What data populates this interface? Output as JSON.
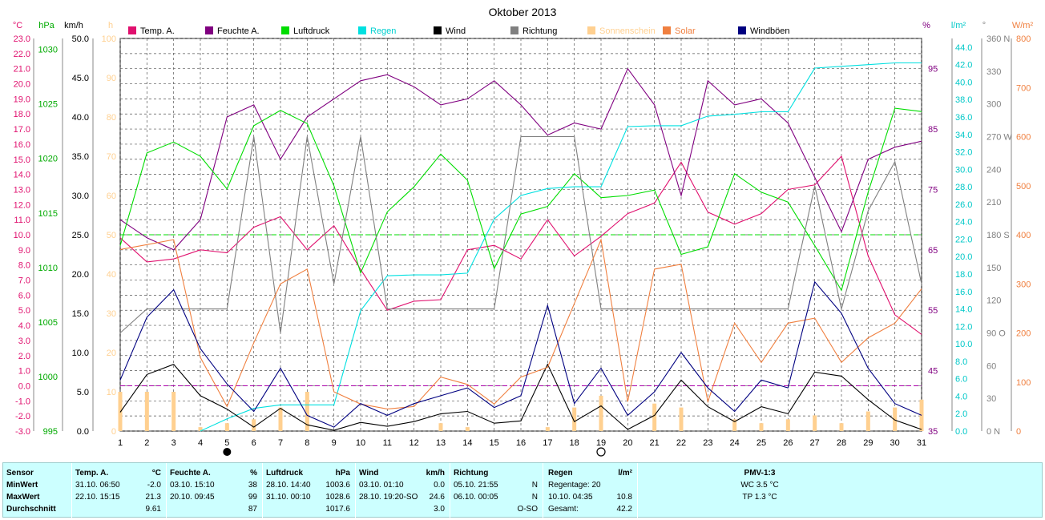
{
  "chart_data": {
    "type": "line",
    "title": "Oktober 2013",
    "x": [
      1,
      2,
      3,
      4,
      5,
      6,
      7,
      8,
      9,
      10,
      11,
      12,
      13,
      14,
      15,
      16,
      17,
      18,
      19,
      20,
      21,
      22,
      23,
      24,
      25,
      26,
      27,
      28,
      29,
      30,
      31
    ],
    "x_ticks": [
      1,
      2,
      3,
      4,
      5,
      6,
      7,
      8,
      9,
      10,
      11,
      12,
      13,
      14,
      15,
      16,
      17,
      18,
      19,
      20,
      21,
      22,
      23,
      24,
      25,
      26,
      27,
      28,
      29,
      30,
      31
    ],
    "legend": [
      {
        "name": "Temp. A.",
        "color": "#e0106e"
      },
      {
        "name": "Feuchte A.",
        "color": "#800080"
      },
      {
        "name": "Luftdruck",
        "color": "#00dd00"
      },
      {
        "name": "Regen",
        "color": "#00e0e0"
      },
      {
        "name": "Wind",
        "color": "#000000"
      },
      {
        "name": "Richtung",
        "color": "#808080"
      },
      {
        "name": "Sonnenschein",
        "color": "#ffd090"
      },
      {
        "name": "Solar",
        "color": "#f08040"
      },
      {
        "name": "Windböen",
        "color": "#000080"
      }
    ],
    "axes": {
      "temp": {
        "label": "°C",
        "color": "#e0106e",
        "ticks": [
          "23.0",
          "22.0",
          "21.0",
          "20.0",
          "19.0",
          "18.0",
          "17.0",
          "16.0",
          "15.0",
          "14.0",
          "13.0",
          "12.0",
          "11.0",
          "10.0",
          "9.0",
          "8.0",
          "7.0",
          "6.0",
          "5.0",
          "4.0",
          "3.0",
          "2.0",
          "1.0",
          "0.0",
          "-1.0",
          "-2.0",
          "-3.0"
        ],
        "range": [
          -3,
          23
        ]
      },
      "pressure": {
        "label": "hPa",
        "color": "#00aa00",
        "ticks": [
          "1030",
          "1025",
          "1020",
          "1015",
          "1010",
          "1005",
          "1000",
          "995"
        ],
        "range": [
          995,
          1031
        ]
      },
      "wind": {
        "label": "km/h",
        "color": "#000000",
        "ticks": [
          "50.0",
          "45.0",
          "40.0",
          "35.0",
          "30.0",
          "25.0",
          "20.0",
          "15.0",
          "10.0",
          "5.0",
          "0.0"
        ],
        "range": [
          0,
          50
        ]
      },
      "sun": {
        "label": "h",
        "color": "#ffd090",
        "ticks": [
          "100",
          "90",
          "80",
          "70",
          "60",
          "50",
          "40",
          "30",
          "20",
          "10",
          "0"
        ],
        "range": [
          0,
          100
        ]
      },
      "humidity": {
        "label": "%",
        "color": "#800080",
        "ticks": [
          "95",
          "85",
          "75",
          "65",
          "55",
          "45",
          "35"
        ],
        "range": [
          35,
          100
        ]
      },
      "rain": {
        "label": "l/m²",
        "color": "#00c8c8",
        "ticks": [
          "44.0",
          "42.0",
          "40.0",
          "38.0",
          "36.0",
          "34.0",
          "32.0",
          "30.0",
          "28.0",
          "26.0",
          "24.0",
          "22.0",
          "20.0",
          "18.0",
          "16.0",
          "14.0",
          "12.0",
          "10.0",
          "8.0",
          "6.0",
          "4.0",
          "2.0",
          "0.0"
        ],
        "range": [
          0,
          45
        ]
      },
      "direction": {
        "label": "°",
        "color": "#808080",
        "ticks": [
          "360 N",
          "330",
          "300",
          "270 W",
          "240",
          "210",
          "180 S",
          "150",
          "120",
          "90 O",
          "60",
          "30",
          "0 N"
        ],
        "range": [
          0,
          360
        ]
      },
      "solar": {
        "label": "W/m²",
        "color": "#f08040",
        "ticks": [
          "800",
          "700",
          "600",
          "500",
          "400",
          "300",
          "200",
          "100",
          "0"
        ],
        "range": [
          0,
          800
        ]
      }
    },
    "reference_lines": [
      {
        "axis": "temp",
        "value": 0.0,
        "color": "#aa00aa"
      },
      {
        "axis": "pressure",
        "value": 1013,
        "color": "#00dd00"
      }
    ],
    "moon_phases": [
      {
        "day": 5,
        "phase": "Neumond"
      },
      {
        "day": 19,
        "phase": "Vollmond"
      }
    ],
    "series": [
      {
        "name": "Temp. A.",
        "axis": "temp",
        "values": [
          9.8,
          8.2,
          8.4,
          9.0,
          8.8,
          10.5,
          11.2,
          9.0,
          10.6,
          7.7,
          5.0,
          5.6,
          5.7,
          9.0,
          9.3,
          8.4,
          11.0,
          8.6,
          9.9,
          11.4,
          12.1,
          14.8,
          11.5,
          10.7,
          11.4,
          13.0,
          13.3,
          15.2,
          8.6,
          4.7,
          3.4
        ],
        "color": "#e0106e"
      },
      {
        "name": "Feuchte A.",
        "axis": "humidity",
        "values": [
          70,
          67,
          65,
          70,
          87,
          89,
          80,
          87,
          90,
          93,
          94,
          92,
          89,
          90,
          93,
          89,
          84,
          86,
          85,
          95,
          89,
          74,
          93,
          89,
          90,
          86,
          77,
          68,
          80,
          82,
          83
        ],
        "color": "#800080"
      },
      {
        "name": "Luftdruck",
        "axis": "pressure",
        "values": [
          1012,
          1020.5,
          1021.5,
          1020.2,
          1017.2,
          1023.0,
          1024.4,
          1023.2,
          1017.5,
          1009.5,
          1015.1,
          1017.4,
          1020.4,
          1018.0,
          1009.9,
          1014.9,
          1015.6,
          1018.6,
          1016.4,
          1016.6,
          1017.1,
          1011.2,
          1011.9,
          1018.6,
          1016.9,
          1016.0,
          1012.0,
          1007.9,
          1016.9,
          1024.6,
          1024.3
        ],
        "color": "#00dd00"
      },
      {
        "name": "Regen",
        "axis": "rain",
        "values": [
          null,
          null,
          null,
          0.0,
          1.4,
          2.6,
          3.0,
          3.0,
          3.0,
          13.8,
          17.8,
          17.9,
          17.9,
          18.1,
          24.3,
          27.0,
          27.8,
          28.0,
          28.0,
          34.9,
          35.0,
          35.0,
          36.1,
          36.3,
          36.6,
          36.6,
          41.6,
          41.8,
          42.0,
          42.2,
          42.2
        ],
        "color": "#00e0e0"
      },
      {
        "name": "Wind",
        "axis": "wind",
        "values": [
          2.4,
          7.2,
          8.5,
          4.5,
          2.8,
          0.5,
          2.9,
          0.8,
          0.1,
          1.1,
          0.6,
          1.2,
          2.2,
          2.5,
          1.0,
          1.3,
          8.5,
          1.2,
          3.2,
          0.2,
          2.0,
          6.5,
          3.1,
          1.2,
          3.1,
          2.2,
          7.5,
          7.0,
          4.0,
          1.4,
          0.2
        ],
        "color": "#000000"
      },
      {
        "name": "Richtung",
        "axis": "direction",
        "values": [
          90,
          112,
          112,
          112,
          112,
          270,
          90,
          270,
          135,
          270,
          112,
          112,
          112,
          112,
          112,
          270,
          270,
          270,
          112,
          112,
          112,
          112,
          112,
          112,
          112,
          112,
          225,
          112,
          202,
          247,
          135
        ],
        "color": "#808080"
      },
      {
        "name": "Sonnenschein",
        "axis": "sun",
        "values": [
          10,
          10,
          10,
          1,
          2,
          3,
          6,
          10,
          0,
          0,
          0,
          0,
          2,
          1,
          0,
          0,
          1,
          6,
          9,
          0,
          7,
          6,
          0,
          3,
          2,
          3,
          4,
          2,
          5,
          6,
          8
        ],
        "color": "#ffd090",
        "kind": "bar"
      },
      {
        "name": "Solar",
        "axis": "solar",
        "values": [
          370,
          380,
          390,
          150,
          50,
          180,
          300,
          330,
          80,
          55,
          45,
          50,
          110,
          95,
          55,
          110,
          130,
          260,
          390,
          60,
          330,
          340,
          60,
          220,
          140,
          220,
          230,
          140,
          190,
          220,
          290
        ],
        "color": "#f08040"
      },
      {
        "name": "Windböen",
        "axis": "wind",
        "values": [
          6.5,
          14.5,
          18.0,
          10.5,
          6.0,
          2.5,
          8.0,
          2.0,
          0.5,
          3.5,
          2.0,
          3.5,
          4.5,
          5.5,
          3.0,
          4.5,
          16.0,
          3.5,
          8.0,
          2.0,
          5.0,
          10.0,
          5.5,
          2.5,
          6.5,
          5.5,
          19.0,
          15.0,
          8.0,
          3.5,
          2.0
        ],
        "color": "#000080"
      }
    ]
  },
  "table": {
    "sensor": {
      "head": "Sensor",
      "rows": [
        "MinWert",
        "MaxWert",
        "Durchschnitt"
      ]
    },
    "temp": {
      "head": "Temp. A.",
      "unit": "°C",
      "rows": [
        [
          "31.10.  06:50",
          "-2.0"
        ],
        [
          "22.10.  15:15",
          "21.3"
        ],
        [
          "",
          "9.61"
        ]
      ]
    },
    "humidity": {
      "head": "Feuchte A.",
      "unit": "%",
      "rows": [
        [
          "03.10.  15:10",
          "38"
        ],
        [
          "20.10.  09:45",
          "99"
        ],
        [
          "",
          "87"
        ]
      ]
    },
    "pressure": {
      "head": "Luftdruck",
      "unit": "hPa",
      "rows": [
        [
          "28.10.  14:40",
          "1003.6"
        ],
        [
          "31.10.  00:10",
          "1028.6"
        ],
        [
          "",
          "1017.6"
        ]
      ]
    },
    "wind": {
      "head": "Wind",
      "unit": "km/h",
      "rows": [
        [
          "03.10.  01:10",
          "0.0"
        ],
        [
          "28.10.  19:20-SO",
          "24.6"
        ],
        [
          "",
          "3.0"
        ]
      ]
    },
    "direction": {
      "head": "Richtung",
      "rows": [
        [
          "05.10.  21:55",
          "N"
        ],
        [
          "06.10.  00:05",
          "N"
        ],
        [
          "",
          "O-SO"
        ]
      ]
    },
    "rain": {
      "head": "Regen",
      "unit": "l/m²",
      "rows": [
        [
          "Regentage: 20",
          ""
        ],
        [
          "10.10.  04:35",
          "10.8"
        ],
        [
          "Gesamt:",
          "42.2"
        ]
      ]
    },
    "pmv": {
      "head": "PMV-1:3",
      "rows": [
        "WC 3.5 °C",
        "TP 1.3 °C"
      ]
    }
  }
}
